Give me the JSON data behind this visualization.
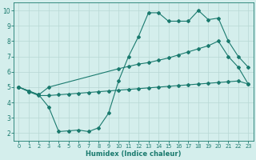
{
  "line1_x": [
    0,
    1,
    2,
    3,
    4,
    5,
    6,
    7,
    8,
    9,
    10,
    11,
    12,
    13,
    14,
    15,
    16,
    17,
    18,
    19,
    20,
    21,
    22,
    23
  ],
  "line1_y": [
    5.0,
    4.75,
    4.5,
    3.7,
    2.1,
    2.15,
    2.2,
    2.1,
    2.35,
    3.3,
    5.4,
    7.0,
    8.3,
    9.85,
    9.85,
    9.3,
    9.3,
    9.3,
    10.0,
    9.4,
    9.5,
    8.0,
    7.0,
    6.3
  ],
  "line2_x": [
    0,
    1,
    2,
    3,
    10,
    11,
    12,
    13,
    14,
    15,
    16,
    17,
    18,
    19,
    20,
    21,
    22,
    23
  ],
  "line2_y": [
    5.0,
    4.75,
    4.5,
    5.0,
    6.2,
    6.35,
    6.5,
    6.6,
    6.75,
    6.9,
    7.1,
    7.3,
    7.5,
    7.7,
    8.0,
    7.0,
    6.3,
    5.2
  ],
  "line3_x": [
    0,
    1,
    2,
    3,
    4,
    5,
    6,
    7,
    8,
    9,
    10,
    11,
    12,
    13,
    14,
    15,
    16,
    17,
    18,
    19,
    20,
    21,
    22,
    23
  ],
  "line3_y": [
    5.0,
    4.7,
    4.45,
    4.45,
    4.5,
    4.55,
    4.6,
    4.65,
    4.7,
    4.75,
    4.8,
    4.85,
    4.9,
    4.95,
    5.0,
    5.05,
    5.1,
    5.15,
    5.2,
    5.25,
    5.3,
    5.35,
    5.4,
    5.2
  ],
  "color": "#1a7a6e",
  "bg_color": "#d4eeec",
  "grid_color": "#b8d8d4",
  "xlabel": "Humidex (Indice chaleur)",
  "xlim": [
    -0.5,
    23.5
  ],
  "ylim": [
    1.5,
    10.5
  ],
  "xticks": [
    0,
    1,
    2,
    3,
    4,
    5,
    6,
    7,
    8,
    9,
    10,
    11,
    12,
    13,
    14,
    15,
    16,
    17,
    18,
    19,
    20,
    21,
    22,
    23
  ],
  "yticks": [
    2,
    3,
    4,
    5,
    6,
    7,
    8,
    9,
    10
  ]
}
